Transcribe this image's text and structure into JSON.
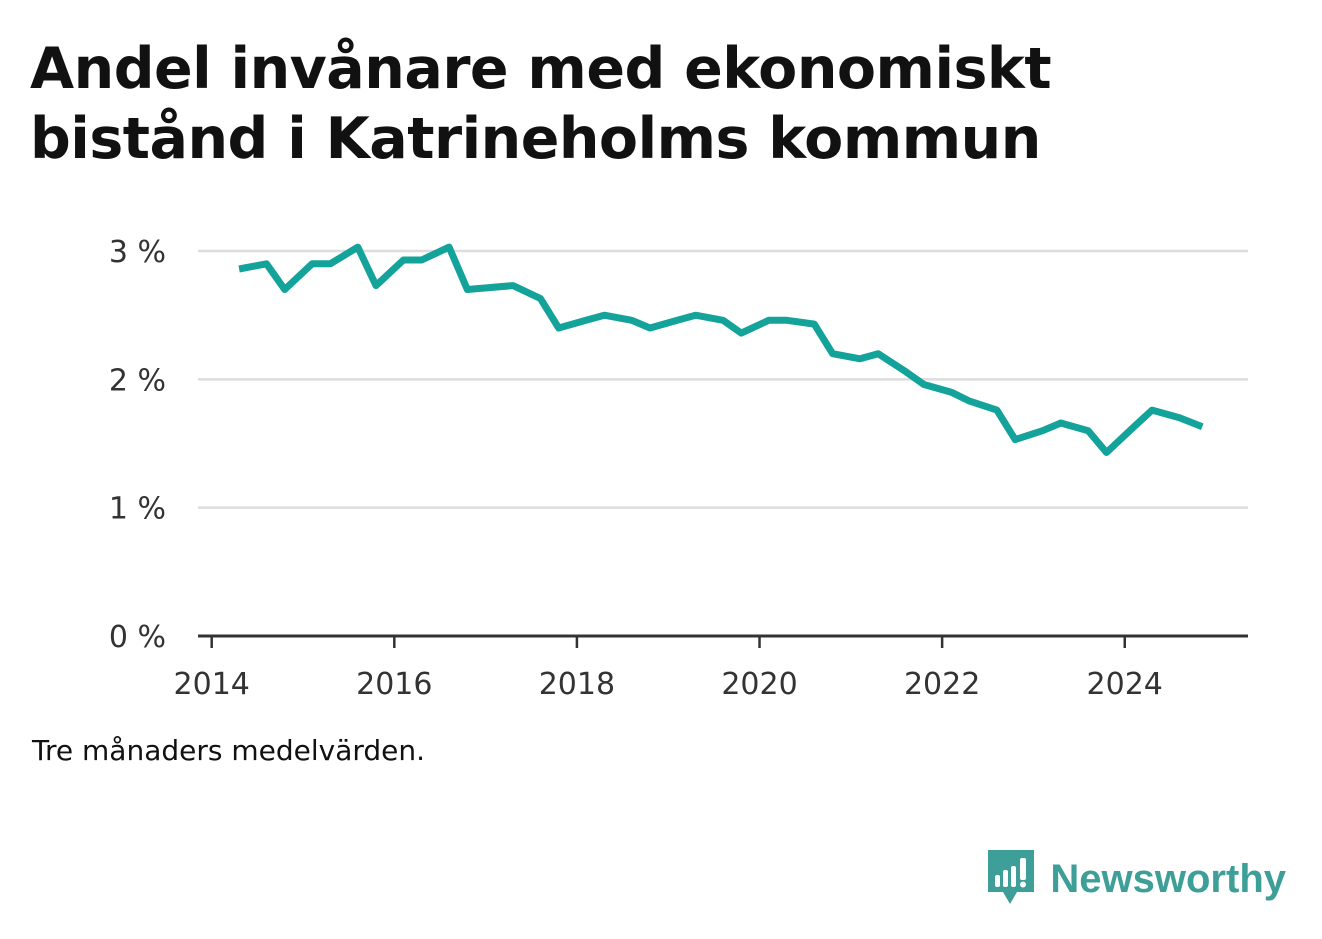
{
  "header": {
    "title": "Andel invånare med ekonomiskt bistånd i Katrineholms kommun"
  },
  "footer": {
    "note": "Tre månaders medelvärden.",
    "brand_name": "Newsworthy"
  },
  "icons": {
    "logo": "bar-chart-speech-bubble-icon"
  },
  "colors": {
    "line": "#14a39a",
    "grid": "#dddddd",
    "axis": "#333333",
    "brand": "#3d9f98"
  },
  "chart_data": {
    "type": "line",
    "title": "Andel invånare med ekonomiskt bistånd i Katrineholms kommun",
    "xlabel": "",
    "ylabel": "",
    "xlim": [
      2013.85,
      2025.35
    ],
    "ylim": [
      0,
      3
    ],
    "x_ticks": [
      2014,
      2016,
      2018,
      2020,
      2022,
      2024
    ],
    "x_tick_labels": [
      "2014",
      "2016",
      "2018",
      "2020",
      "2022",
      "2024"
    ],
    "y_ticks": [
      0,
      1,
      2,
      3
    ],
    "y_tick_labels": [
      "0 %",
      "1 %",
      "2 %",
      "3 %"
    ],
    "grid": "horizontal",
    "series": [
      {
        "x": [
          2014.3,
          2014.6,
          2014.8,
          2015.1,
          2015.3,
          2015.6,
          2015.8,
          2016.1,
          2016.3,
          2016.6,
          2016.8,
          2017.3,
          2017.6,
          2017.8,
          2018.1,
          2018.3,
          2018.6,
          2018.8,
          2019.1,
          2019.3,
          2019.6,
          2019.8,
          2020.1,
          2020.3,
          2020.6,
          2020.8,
          2021.1,
          2021.3,
          2021.6,
          2021.8,
          2022.1,
          2022.3,
          2022.6,
          2022.8,
          2023.1,
          2023.3,
          2023.6,
          2023.8,
          2024.1,
          2024.3,
          2024.6,
          2024.85
        ],
        "y": [
          2.86,
          2.9,
          2.7,
          2.9,
          2.9,
          3.03,
          2.73,
          2.93,
          2.93,
          3.03,
          2.7,
          2.73,
          2.63,
          2.4,
          2.46,
          2.5,
          2.46,
          2.4,
          2.46,
          2.5,
          2.46,
          2.36,
          2.46,
          2.46,
          2.43,
          2.2,
          2.16,
          2.2,
          2.06,
          1.96,
          1.9,
          1.83,
          1.76,
          1.53,
          1.6,
          1.66,
          1.6,
          1.43,
          1.63,
          1.76,
          1.7,
          1.63
        ]
      }
    ]
  }
}
